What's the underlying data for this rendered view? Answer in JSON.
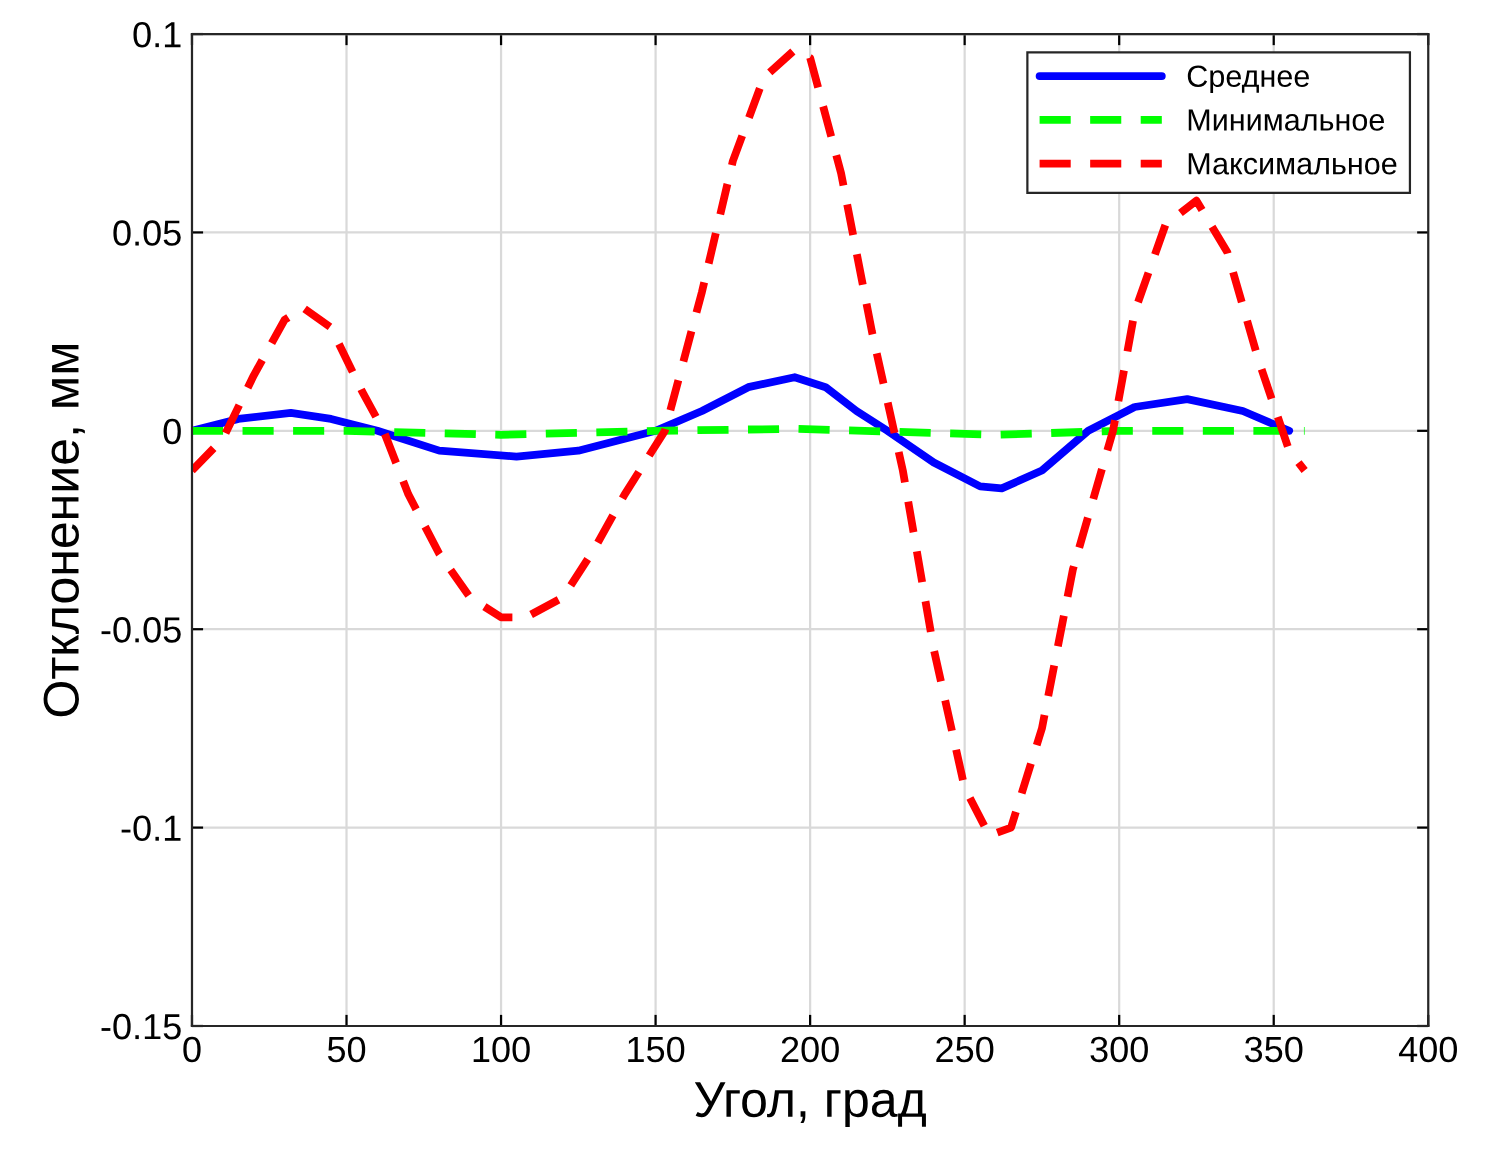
{
  "chart_data": {
    "type": "line",
    "xlabel": "Угол, град",
    "ylabel": "Отклонение, мм",
    "xlim": [
      0,
      400
    ],
    "xticks": [
      0,
      50,
      100,
      150,
      200,
      250,
      300,
      350,
      400
    ],
    "ylim": [
      -0.15,
      0.1
    ],
    "yticks": [
      -0.15,
      -0.1,
      -0.05,
      0,
      0.05,
      0.1
    ],
    "grid": true,
    "legend": "top right",
    "series": [
      {
        "name": "Среднее",
        "color": "#0000ff",
        "line_style": "solid",
        "x": [
          0,
          15,
          32,
          45,
          60,
          80,
          105,
          125,
          140,
          150,
          165,
          180,
          195,
          205,
          215,
          225,
          240,
          255,
          262,
          275,
          290,
          305,
          322,
          340,
          355
        ],
        "values": [
          0,
          0.003,
          0.0045,
          0.003,
          0,
          -0.005,
          -0.0065,
          -0.005,
          -0.002,
          0,
          0.005,
          0.011,
          0.0135,
          0.011,
          0.005,
          0,
          -0.008,
          -0.014,
          -0.0145,
          -0.01,
          0,
          0.006,
          0.008,
          0.005,
          0
        ]
      },
      {
        "name": "Минимальное",
        "color": "#00ff00",
        "line_style": "dashed",
        "x": [
          0,
          50,
          100,
          150,
          195,
          260,
          300,
          360
        ],
        "values": [
          0,
          0,
          -0.001,
          0,
          0.0005,
          -0.001,
          0,
          0
        ]
      },
      {
        "name": "Максимальное",
        "color": "#ff0000",
        "line_style": "dashed",
        "x": [
          0,
          10,
          20,
          30,
          36,
          45,
          55,
          62,
          70,
          80,
          90,
          100,
          108,
          120,
          130,
          140,
          153,
          165,
          175,
          185,
          195,
          200,
          210,
          220,
          230,
          240,
          250,
          258,
          265,
          275,
          285,
          298,
          305,
          315,
          325,
          335,
          345,
          355,
          360
        ],
        "values": [
          -0.01,
          -0.002,
          0.014,
          0.028,
          0.031,
          0.026,
          0.01,
          0,
          -0.016,
          -0.031,
          -0.042,
          -0.047,
          -0.047,
          -0.042,
          -0.03,
          -0.016,
          0,
          0.035,
          0.068,
          0.089,
          0.096,
          0.094,
          0.065,
          0.025,
          -0.01,
          -0.055,
          -0.09,
          -0.102,
          -0.1,
          -0.075,
          -0.035,
          0,
          0.03,
          0.052,
          0.058,
          0.045,
          0.018,
          -0.005,
          -0.01
        ]
      }
    ]
  }
}
